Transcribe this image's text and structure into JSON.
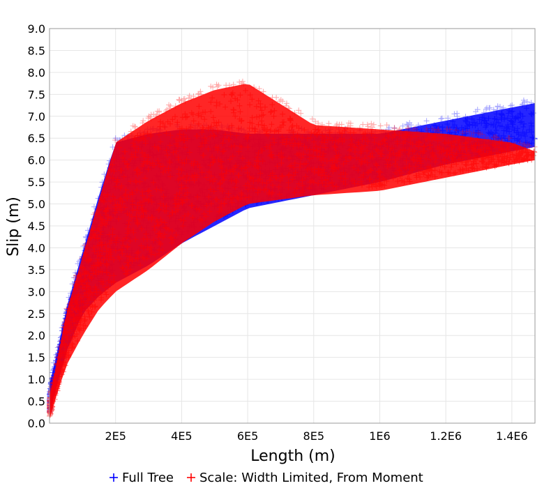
{
  "chart_data": {
    "type": "scatter",
    "title": "",
    "xlabel": "Length (m)",
    "ylabel": "Slip (m)",
    "xlim": [
      0,
      1470000
    ],
    "ylim": [
      0,
      9.0
    ],
    "xticks": [
      {
        "value": 200000,
        "label": "2E5"
      },
      {
        "value": 400000,
        "label": "4E5"
      },
      {
        "value": 600000,
        "label": "6E5"
      },
      {
        "value": 800000,
        "label": "8E5"
      },
      {
        "value": 1000000,
        "label": "1E6"
      },
      {
        "value": 1200000,
        "label": "1.2E6"
      },
      {
        "value": 1400000,
        "label": "1.4E6"
      }
    ],
    "yticks": [
      {
        "value": 0.0,
        "label": "0.0"
      },
      {
        "value": 0.5,
        "label": "0.5"
      },
      {
        "value": 1.0,
        "label": "1.0"
      },
      {
        "value": 1.5,
        "label": "1.5"
      },
      {
        "value": 2.0,
        "label": "2.0"
      },
      {
        "value": 2.5,
        "label": "2.5"
      },
      {
        "value": 3.0,
        "label": "3.0"
      },
      {
        "value": 3.5,
        "label": "3.5"
      },
      {
        "value": 4.0,
        "label": "4.0"
      },
      {
        "value": 4.5,
        "label": "4.5"
      },
      {
        "value": 5.0,
        "label": "5.0"
      },
      {
        "value": 5.5,
        "label": "5.5"
      },
      {
        "value": 6.0,
        "label": "6.0"
      },
      {
        "value": 6.5,
        "label": "6.5"
      },
      {
        "value": 7.0,
        "label": "7.0"
      },
      {
        "value": 7.5,
        "label": "7.5"
      },
      {
        "value": 8.0,
        "label": "8.0"
      },
      {
        "value": 8.5,
        "label": "8.5"
      },
      {
        "value": 9.0,
        "label": "9.0"
      }
    ],
    "grid": true,
    "legend_position": "bottom-center",
    "marker": "plus",
    "series": [
      {
        "name": "Full Tree",
        "color": "#0000ff",
        "envelope": {
          "x": [
            0,
            20000,
            50000,
            100000,
            150000,
            200000,
            300000,
            400000,
            500000,
            600000,
            800000,
            1000000,
            1200000,
            1400000,
            1470000
          ],
          "y_low": [
            0.2,
            0.8,
            1.6,
            2.5,
            2.9,
            3.2,
            3.6,
            4.1,
            4.5,
            4.9,
            5.2,
            5.5,
            5.9,
            6.2,
            6.3
          ],
          "y_high": [
            0.9,
            1.5,
            2.6,
            3.9,
            5.2,
            6.4,
            6.6,
            6.7,
            6.7,
            6.6,
            6.6,
            6.6,
            6.9,
            7.2,
            7.3
          ]
        }
      },
      {
        "name": "Scale: Width Limited, From Moment",
        "color": "#ff0000",
        "envelope": {
          "x": [
            0,
            20000,
            50000,
            100000,
            150000,
            200000,
            300000,
            400000,
            500000,
            600000,
            800000,
            1000000,
            1200000,
            1400000,
            1470000
          ],
          "y_low": [
            0.1,
            0.6,
            1.3,
            2.0,
            2.6,
            3.0,
            3.5,
            4.1,
            4.6,
            5.0,
            5.2,
            5.3,
            5.6,
            5.9,
            6.0
          ],
          "y_high": [
            0.6,
            1.3,
            2.5,
            3.8,
            5.1,
            6.4,
            6.9,
            7.3,
            7.6,
            7.75,
            6.8,
            6.7,
            6.6,
            6.4,
            6.2
          ]
        }
      }
    ]
  }
}
